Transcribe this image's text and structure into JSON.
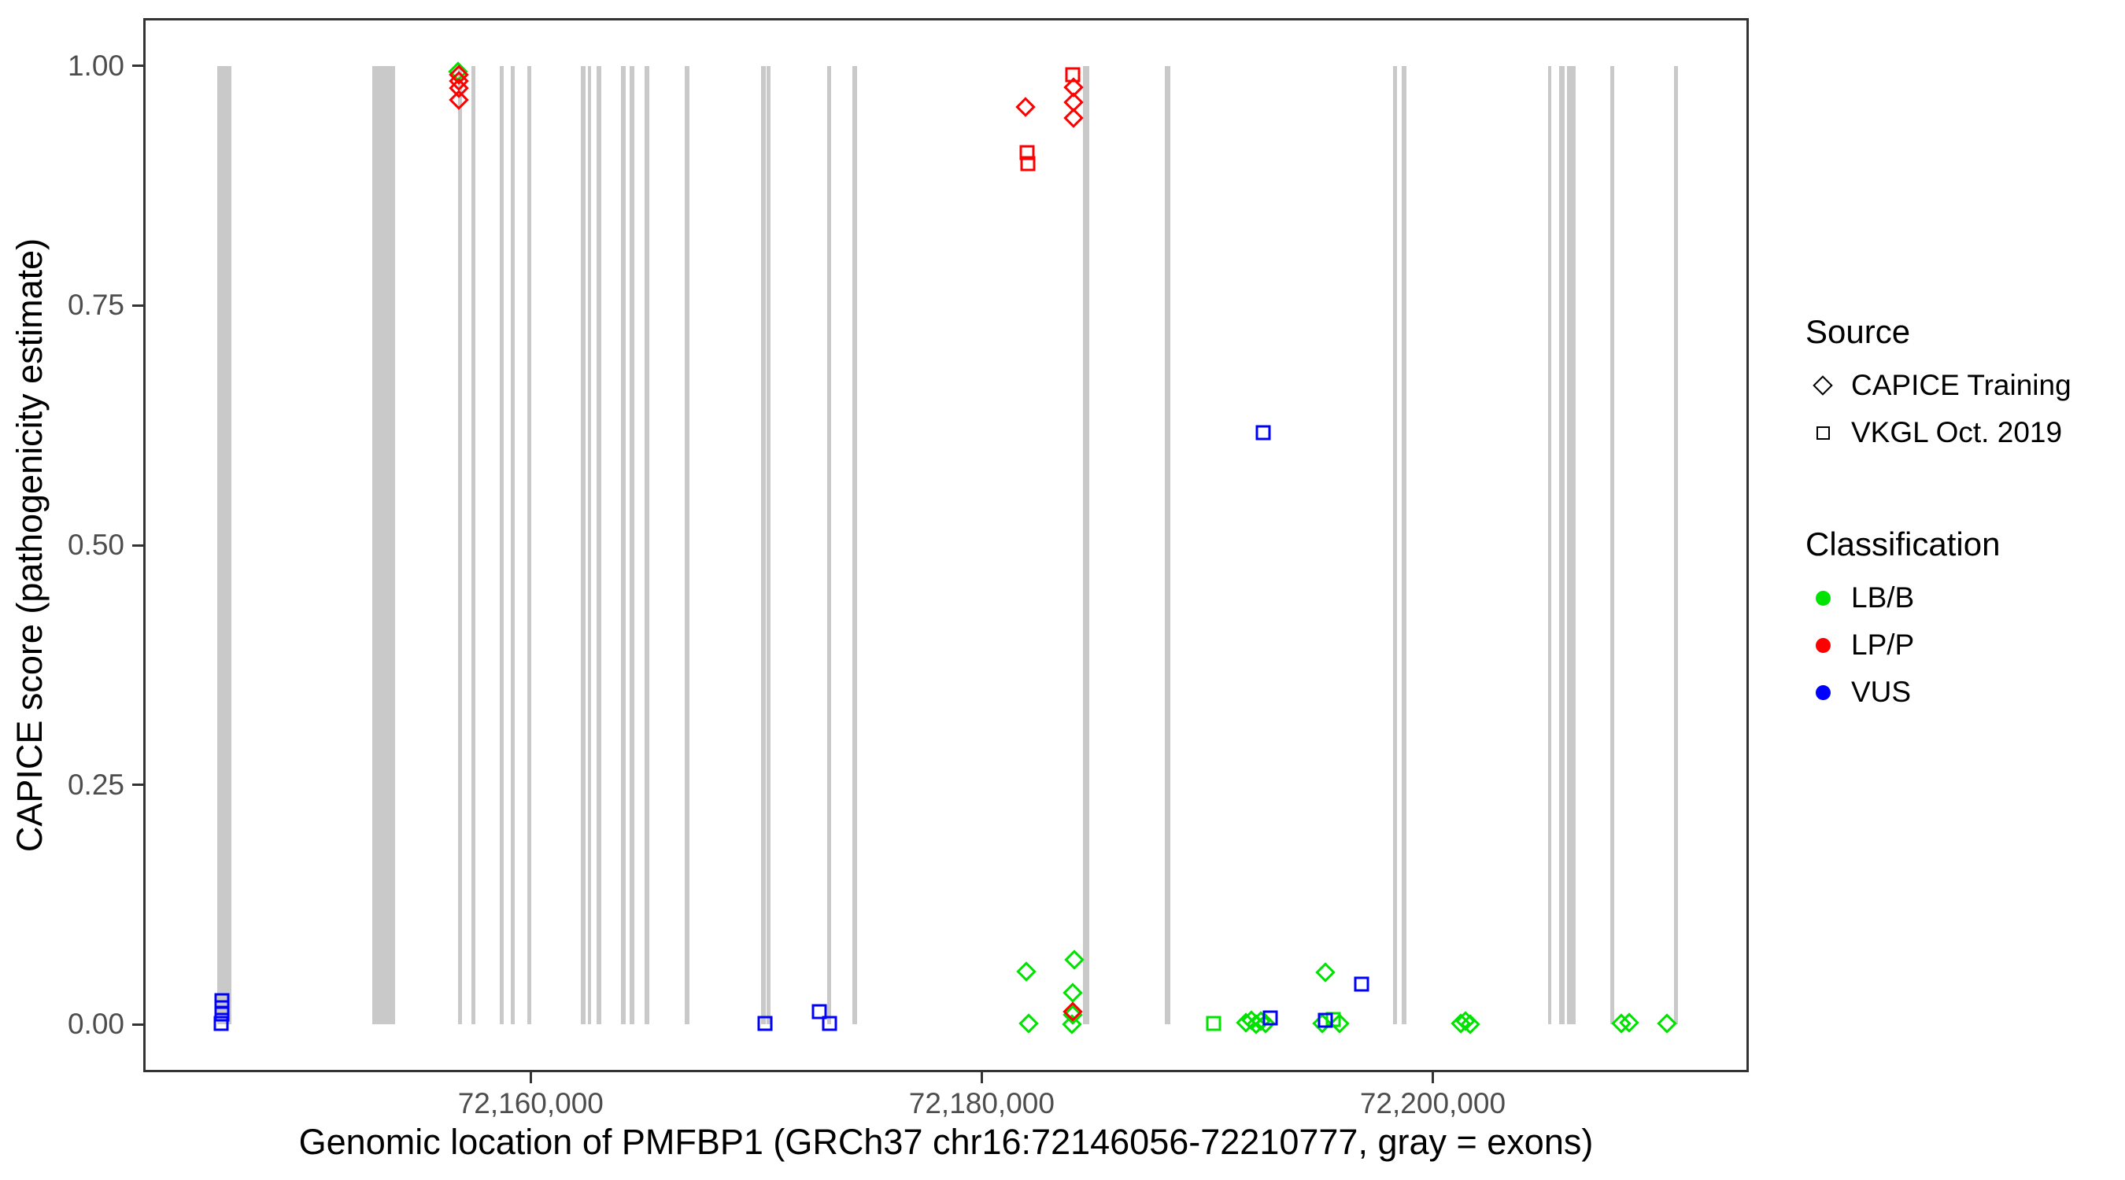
{
  "chart_data": {
    "type": "scatter",
    "xlabel": "Genomic location of PMFBP1 (GRCh37 chr16:72146056-72210777, gray = exons)",
    "ylabel": "CAPICE score (pathogenicity estimate)",
    "xlim": [
      72142820,
      72214013
    ],
    "ylim": [
      -0.05,
      1.05
    ],
    "grid": "off",
    "x_ticks": [
      {
        "value": 72160000,
        "label": "72,160,000"
      },
      {
        "value": 72180000,
        "label": "72,180,000"
      },
      {
        "value": 72200000,
        "label": "72,200,000"
      }
    ],
    "y_ticks": [
      {
        "value": 0.0,
        "label": "0.00"
      },
      {
        "value": 0.25,
        "label": "0.25"
      },
      {
        "value": 0.5,
        "label": "0.50"
      },
      {
        "value": 0.75,
        "label": "0.75"
      },
      {
        "value": 1.0,
        "label": "1.00"
      }
    ],
    "exon_track": {
      "color": "#C9C9C9",
      "score_span": [
        0,
        1
      ],
      "exons": [
        [
          72146100,
          72146728
        ],
        [
          72152975,
          72153987
        ],
        [
          72156762,
          72156937
        ],
        [
          72157373,
          72157548
        ],
        [
          72158630,
          72158804
        ],
        [
          72159118,
          72159293
        ],
        [
          72159851,
          72160026
        ],
        [
          72162224,
          72162416
        ],
        [
          72162521,
          72162678
        ],
        [
          72162922,
          72163114
        ],
        [
          72164004,
          72164196
        ],
        [
          72164388,
          72164597
        ],
        [
          72165051,
          72165260
        ],
        [
          72166813,
          72167040
        ],
        [
          72170216,
          72170408
        ],
        [
          72170443,
          72170634
        ],
        [
          72173164,
          72173338
        ],
        [
          72174281,
          72174473
        ],
        [
          72184488,
          72184767
        ],
        [
          72188117,
          72188378
        ],
        [
          72198238,
          72198430
        ],
        [
          72198622,
          72198849
        ],
        [
          72205130,
          72205270
        ],
        [
          72205619,
          72205846
        ],
        [
          72205968,
          72206160
        ],
        [
          72206177,
          72206352
        ],
        [
          72207870,
          72208062
        ],
        [
          72210714,
          72210871
        ]
      ]
    },
    "shape_by_source": {
      "CAPICE Training": "diamond",
      "VKGL Oct. 2019": "square"
    },
    "color_by_classification": {
      "LB/B": "#00E300",
      "LP/P": "#FE0000",
      "VUS": "#0000FE"
    },
    "points": [
      {
        "source": "CAPICE Training",
        "classification": "LB/B",
        "pos": 72156790,
        "score": 0.994
      },
      {
        "source": "CAPICE Training",
        "classification": "LB/B",
        "pos": 72181980,
        "score": 0.055
      },
      {
        "source": "CAPICE Training",
        "classification": "LB/B",
        "pos": 72182080,
        "score": 0.001
      },
      {
        "source": "CAPICE Training",
        "classification": "LB/B",
        "pos": 72184100,
        "score": 0.067
      },
      {
        "source": "CAPICE Training",
        "classification": "LB/B",
        "pos": 72184040,
        "score": 0.033
      },
      {
        "source": "CAPICE Training",
        "classification": "LB/B",
        "pos": 72184040,
        "score": 0.01
      },
      {
        "source": "CAPICE Training",
        "classification": "LB/B",
        "pos": 72184000,
        "score": 0.0
      },
      {
        "source": "VKGL Oct. 2019",
        "classification": "LB/B",
        "pos": 72190280,
        "score": 0.001
      },
      {
        "source": "CAPICE Training",
        "classification": "LB/B",
        "pos": 72191715,
        "score": 0.002
      },
      {
        "source": "CAPICE Training",
        "classification": "LB/B",
        "pos": 72191955,
        "score": 0.004
      },
      {
        "source": "CAPICE Training",
        "classification": "LB/B",
        "pos": 72192165,
        "score": 0.0
      },
      {
        "source": "CAPICE Training",
        "classification": "LB/B",
        "pos": 72192375,
        "score": 0.003
      },
      {
        "source": "CAPICE Training",
        "classification": "LB/B",
        "pos": 72192585,
        "score": 0.001
      },
      {
        "source": "CAPICE Training",
        "classification": "LB/B",
        "pos": 72195100,
        "score": 0.001
      },
      {
        "source": "VKGL Oct. 2019",
        "classification": "LB/B",
        "pos": 72195590,
        "score": 0.005
      },
      {
        "source": "CAPICE Training",
        "classification": "LB/B",
        "pos": 72195870,
        "score": 0.001
      },
      {
        "source": "CAPICE Training",
        "classification": "LB/B",
        "pos": 72195240,
        "score": 0.054
      },
      {
        "source": "CAPICE Training",
        "classification": "LB/B",
        "pos": 72201240,
        "score": 0.001
      },
      {
        "source": "CAPICE Training",
        "classification": "LB/B",
        "pos": 72201455,
        "score": 0.003
      },
      {
        "source": "CAPICE Training",
        "classification": "LB/B",
        "pos": 72201660,
        "score": 0.0
      },
      {
        "source": "CAPICE Training",
        "classification": "LB/B",
        "pos": 72208370,
        "score": 0.001
      },
      {
        "source": "CAPICE Training",
        "classification": "LB/B",
        "pos": 72208720,
        "score": 0.002
      },
      {
        "source": "CAPICE Training",
        "classification": "LB/B",
        "pos": 72210380,
        "score": 0.001
      },
      {
        "source": "CAPICE Training",
        "classification": "LP/P",
        "pos": 72156815,
        "score": 0.991
      },
      {
        "source": "CAPICE Training",
        "classification": "LP/P",
        "pos": 72156820,
        "score": 0.984
      },
      {
        "source": "CAPICE Training",
        "classification": "LP/P",
        "pos": 72156815,
        "score": 0.977
      },
      {
        "source": "CAPICE Training",
        "classification": "LP/P",
        "pos": 72156810,
        "score": 0.965
      },
      {
        "source": "CAPICE Training",
        "classification": "LP/P",
        "pos": 72181940,
        "score": 0.957
      },
      {
        "source": "VKGL Oct. 2019",
        "classification": "LP/P",
        "pos": 72184035,
        "score": 0.991
      },
      {
        "source": "CAPICE Training",
        "classification": "LP/P",
        "pos": 72184060,
        "score": 0.978
      },
      {
        "source": "CAPICE Training",
        "classification": "LP/P",
        "pos": 72184060,
        "score": 0.962
      },
      {
        "source": "CAPICE Training",
        "classification": "LP/P",
        "pos": 72184060,
        "score": 0.946
      },
      {
        "source": "VKGL Oct. 2019",
        "classification": "LP/P",
        "pos": 72182010,
        "score": 0.91
      },
      {
        "source": "VKGL Oct. 2019",
        "classification": "LP/P",
        "pos": 72182060,
        "score": 0.898
      },
      {
        "source": "CAPICE Training",
        "classification": "LP/P",
        "pos": 72184030,
        "score": 0.013
      },
      {
        "source": "VKGL Oct. 2019",
        "classification": "VUS",
        "pos": 72146310,
        "score": 0.025
      },
      {
        "source": "VKGL Oct. 2019",
        "classification": "VUS",
        "pos": 72146310,
        "score": 0.017
      },
      {
        "source": "VKGL Oct. 2019",
        "classification": "VUS",
        "pos": 72146310,
        "score": 0.011
      },
      {
        "source": "VKGL Oct. 2019",
        "classification": "VUS",
        "pos": 72146280,
        "score": 0.001
      },
      {
        "source": "VKGL Oct. 2019",
        "classification": "VUS",
        "pos": 72170390,
        "score": 0.001
      },
      {
        "source": "VKGL Oct. 2019",
        "classification": "VUS",
        "pos": 72172800,
        "score": 0.013
      },
      {
        "source": "VKGL Oct. 2019",
        "classification": "VUS",
        "pos": 72173250,
        "score": 0.001
      },
      {
        "source": "VKGL Oct. 2019",
        "classification": "VUS",
        "pos": 72192480,
        "score": 0.617
      },
      {
        "source": "VKGL Oct. 2019",
        "classification": "VUS",
        "pos": 72192790,
        "score": 0.007
      },
      {
        "source": "VKGL Oct. 2019",
        "classification": "VUS",
        "pos": 72195240,
        "score": 0.004
      },
      {
        "source": "VKGL Oct. 2019",
        "classification": "VUS",
        "pos": 72196840,
        "score": 0.042
      }
    ]
  },
  "legend": {
    "source": {
      "title": "Source",
      "items": [
        {
          "label": "CAPICE Training",
          "shape": "diamond"
        },
        {
          "label": "VKGL Oct. 2019",
          "shape": "square"
        }
      ]
    },
    "classification": {
      "title": "Classification",
      "items": [
        {
          "label": "LB/B",
          "color": "#00E300"
        },
        {
          "label": "LP/P",
          "color": "#FE0000"
        },
        {
          "label": "VUS",
          "color": "#0000FE"
        }
      ]
    }
  },
  "colors": {
    "exon": "#C9C9C9",
    "axis": "#333333",
    "tick_text": "#4d4d4d",
    "lbb": "#00E300",
    "lpp": "#FE0000",
    "vus": "#0000FE"
  }
}
